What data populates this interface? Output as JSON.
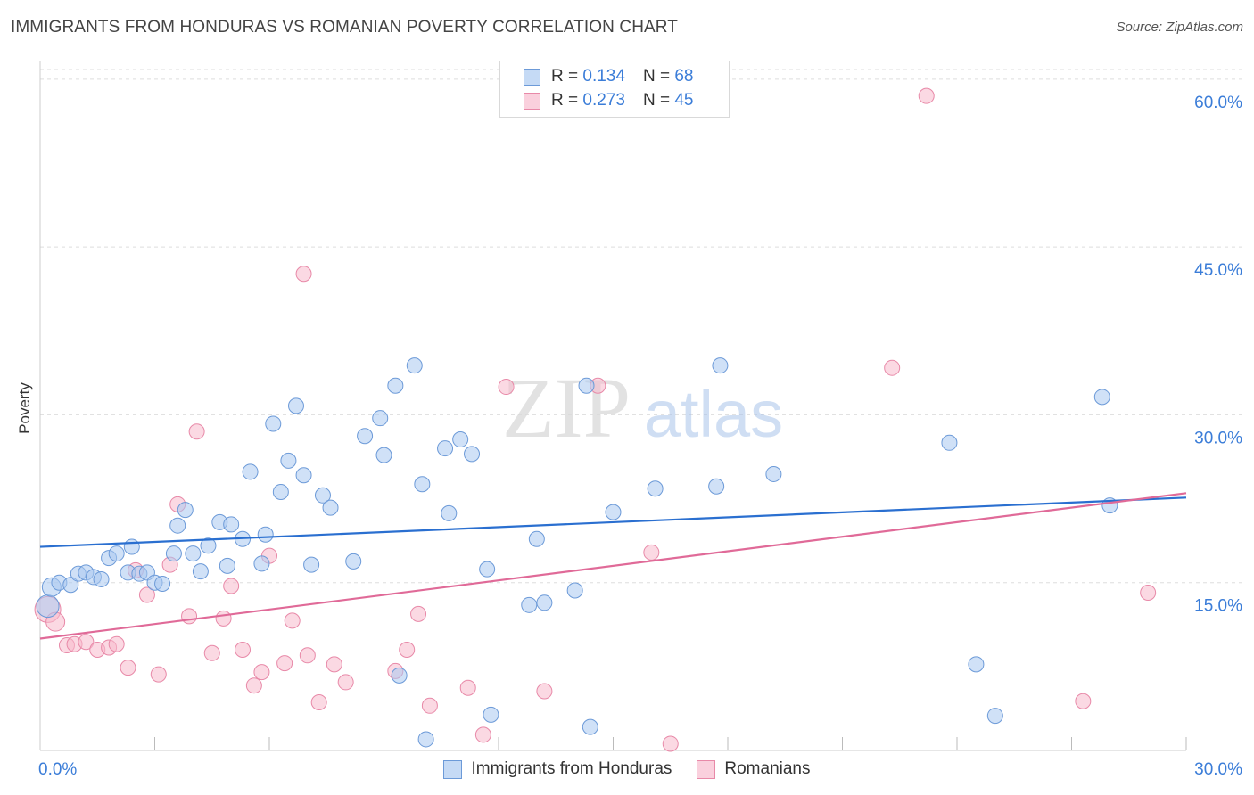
{
  "title": "IMMIGRANTS FROM HONDURAS VS ROMANIAN POVERTY CORRELATION CHART",
  "source": "Source: ZipAtlas.com",
  "watermark": {
    "zip": "ZIP",
    "atlas": "atlas"
  },
  "legend": {
    "r_label": "R = ",
    "n_label": "N = ",
    "rows": [
      {
        "r": "0.134",
        "n": "68"
      },
      {
        "r": "0.273",
        "n": "45"
      }
    ]
  },
  "colors": {
    "blue_fill": "#a9c8f0",
    "blue_stroke": "#6c9ad8",
    "blue_line": "#2a6fd0",
    "pink_fill": "#f7b9cc",
    "pink_stroke": "#e889a8",
    "pink_line": "#e06a98",
    "tick_label": "#3b7dd8",
    "grid": "#dddddd"
  },
  "chart_data": {
    "type": "scatter",
    "title": "IMMIGRANTS FROM HONDURAS VS ROMANIAN POVERTY CORRELATION CHART",
    "xlabel": "",
    "ylabel": "Poverty",
    "xlim": [
      0,
      30
    ],
    "ylim": [
      0,
      61.5
    ],
    "x_tick_labels": [
      "0.0%",
      "30.0%"
    ],
    "y_ticks": [
      15,
      30,
      45,
      60
    ],
    "y_tick_labels": [
      "15.0%",
      "30.0%",
      "45.0%",
      "60.0%"
    ],
    "x_minor_ticks": [
      3,
      6,
      9,
      12,
      15,
      18,
      21,
      24,
      27,
      30
    ],
    "grid": true,
    "series": [
      {
        "name": "Immigrants from Honduras",
        "r": 0.134,
        "n": 68,
        "trend": {
          "x0": 0,
          "y0": 18.2,
          "x1": 30,
          "y1": 22.6
        },
        "points": [
          [
            0.2,
            12.9,
            22
          ],
          [
            0.3,
            14.6,
            18
          ],
          [
            0.5,
            15.0,
            14
          ],
          [
            0.8,
            14.8,
            14
          ],
          [
            1.0,
            15.8,
            14
          ],
          [
            1.2,
            15.9,
            14
          ],
          [
            1.4,
            15.5,
            14
          ],
          [
            1.6,
            15.3,
            14
          ],
          [
            1.8,
            17.2,
            14
          ],
          [
            2.0,
            17.6,
            14
          ],
          [
            2.3,
            15.9,
            14
          ],
          [
            2.4,
            18.2,
            14
          ],
          [
            2.6,
            15.8,
            14
          ],
          [
            2.8,
            15.9,
            14
          ],
          [
            3.0,
            15.0,
            14
          ],
          [
            3.2,
            14.9,
            14
          ],
          [
            3.5,
            17.6,
            14
          ],
          [
            3.6,
            20.1,
            14
          ],
          [
            3.8,
            21.5,
            14
          ],
          [
            4.0,
            17.6,
            14
          ],
          [
            4.2,
            16.0,
            14
          ],
          [
            4.4,
            18.3,
            14
          ],
          [
            4.7,
            20.4,
            14
          ],
          [
            4.9,
            16.5,
            14
          ],
          [
            5.0,
            20.2,
            14
          ],
          [
            5.3,
            18.9,
            14
          ],
          [
            5.5,
            24.9,
            14
          ],
          [
            5.8,
            16.7,
            14
          ],
          [
            5.9,
            19.3,
            14
          ],
          [
            6.1,
            29.2,
            14
          ],
          [
            6.3,
            23.1,
            14
          ],
          [
            6.5,
            25.9,
            14
          ],
          [
            6.7,
            30.8,
            14
          ],
          [
            6.9,
            24.6,
            14
          ],
          [
            7.1,
            16.6,
            14
          ],
          [
            7.4,
            22.8,
            14
          ],
          [
            7.6,
            21.7,
            14
          ],
          [
            8.2,
            16.9,
            14
          ],
          [
            8.5,
            28.1,
            14
          ],
          [
            8.9,
            29.7,
            14
          ],
          [
            9.0,
            26.4,
            14
          ],
          [
            9.3,
            32.6,
            14
          ],
          [
            9.4,
            6.7,
            14
          ],
          [
            9.8,
            34.4,
            14
          ],
          [
            10.0,
            23.8,
            14
          ],
          [
            10.1,
            1.0,
            14
          ],
          [
            10.6,
            27.0,
            14
          ],
          [
            10.7,
            21.2,
            14
          ],
          [
            11.0,
            27.8,
            14
          ],
          [
            11.3,
            26.5,
            14
          ],
          [
            11.7,
            16.2,
            14
          ],
          [
            11.8,
            3.2,
            14
          ],
          [
            12.8,
            13.0,
            14
          ],
          [
            13.0,
            18.9,
            14
          ],
          [
            13.2,
            13.2,
            14
          ],
          [
            14.0,
            14.3,
            14
          ],
          [
            14.3,
            32.6,
            14
          ],
          [
            14.4,
            2.1,
            14
          ],
          [
            15.0,
            21.3,
            14
          ],
          [
            16.1,
            23.4,
            14
          ],
          [
            17.7,
            23.6,
            14
          ],
          [
            17.8,
            34.4,
            14
          ],
          [
            19.2,
            24.7,
            14
          ],
          [
            23.8,
            27.5,
            14
          ],
          [
            24.5,
            7.7,
            14
          ],
          [
            25.0,
            3.1,
            14
          ],
          [
            27.8,
            31.6,
            14
          ],
          [
            28.0,
            21.9,
            14
          ]
        ]
      },
      {
        "name": "Romanians",
        "r": 0.273,
        "n": 45,
        "trend": {
          "x0": 0,
          "y0": 10.0,
          "x1": 30,
          "y1": 23.0
        },
        "points": [
          [
            0.2,
            12.6,
            26
          ],
          [
            0.4,
            11.5,
            18
          ],
          [
            0.7,
            9.4,
            14
          ],
          [
            0.9,
            9.5,
            14
          ],
          [
            1.2,
            9.7,
            14
          ],
          [
            1.5,
            9.0,
            14
          ],
          [
            1.8,
            9.2,
            14
          ],
          [
            2.0,
            9.5,
            14
          ],
          [
            2.3,
            7.4,
            14
          ],
          [
            2.5,
            16.1,
            14
          ],
          [
            2.8,
            13.9,
            14
          ],
          [
            3.1,
            6.8,
            14
          ],
          [
            3.4,
            16.6,
            14
          ],
          [
            3.6,
            22.0,
            14
          ],
          [
            3.9,
            12.0,
            14
          ],
          [
            4.1,
            28.5,
            14
          ],
          [
            4.5,
            8.7,
            14
          ],
          [
            4.8,
            11.8,
            14
          ],
          [
            5.0,
            14.7,
            14
          ],
          [
            5.3,
            9.0,
            14
          ],
          [
            5.6,
            5.8,
            14
          ],
          [
            5.8,
            7.0,
            14
          ],
          [
            6.0,
            17.4,
            14
          ],
          [
            6.4,
            7.8,
            14
          ],
          [
            6.6,
            11.6,
            14
          ],
          [
            6.9,
            42.6,
            14
          ],
          [
            7.0,
            8.5,
            14
          ],
          [
            7.3,
            4.3,
            14
          ],
          [
            7.7,
            7.7,
            14
          ],
          [
            8.0,
            6.1,
            14
          ],
          [
            9.3,
            7.1,
            14
          ],
          [
            9.6,
            9.0,
            14
          ],
          [
            9.9,
            12.2,
            14
          ],
          [
            10.2,
            4.0,
            14
          ],
          [
            11.2,
            5.6,
            14
          ],
          [
            11.6,
            1.4,
            14
          ],
          [
            12.2,
            32.5,
            14
          ],
          [
            13.2,
            5.3,
            14
          ],
          [
            14.6,
            32.6,
            14
          ],
          [
            16.0,
            17.7,
            14
          ],
          [
            16.5,
            0.6,
            14
          ],
          [
            22.3,
            34.2,
            14
          ],
          [
            23.2,
            58.5,
            14
          ],
          [
            27.3,
            4.4,
            14
          ],
          [
            29.0,
            14.1,
            14
          ]
        ]
      }
    ]
  }
}
